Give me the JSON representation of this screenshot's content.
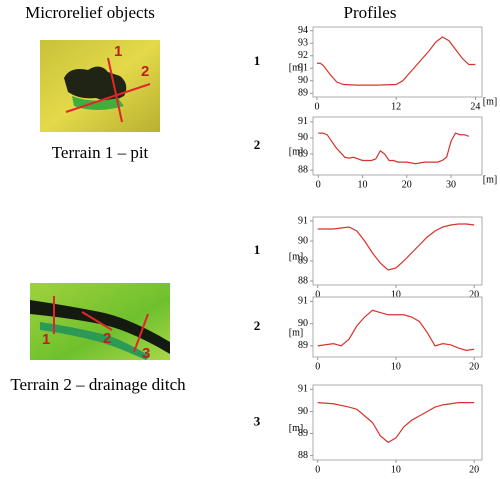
{
  "headers": {
    "left": "Microrelief objects",
    "right": "Profiles"
  },
  "terrains": [
    {
      "caption": "Terrain 1 – pit",
      "line_labels": [
        "1",
        "2"
      ]
    },
    {
      "caption": "Terrain 2 – drainage ditch",
      "line_labels": [
        "1",
        "2",
        "3"
      ]
    }
  ],
  "chart_data": [
    {
      "type": "line",
      "title": "1",
      "ylabel": "[m]",
      "xlabel": "[m]",
      "color": "#d7332c",
      "x": [
        0,
        0.5,
        1,
        2,
        3,
        4,
        6,
        9,
        12,
        13,
        14,
        15,
        16,
        17,
        18,
        19,
        20,
        21,
        22,
        23,
        24
      ],
      "series": [
        {
          "values": [
            91.4,
            91.4,
            91.2,
            90.5,
            89.9,
            89.7,
            89.65,
            89.65,
            89.7,
            90.0,
            90.6,
            91.2,
            91.8,
            92.4,
            93.1,
            93.5,
            93.2,
            92.5,
            91.8,
            91.3,
            91.3
          ]
        }
      ],
      "xlim": [
        -0.6,
        25
      ],
      "ylim": [
        88.7,
        94.3
      ],
      "xticks": [
        0,
        12,
        24
      ],
      "yticks": [
        89,
        90,
        91,
        92,
        93,
        94
      ]
    },
    {
      "type": "line",
      "title": "2",
      "ylabel": "[m]",
      "xlabel": "[m]",
      "color": "#d7332c",
      "x": [
        0,
        1,
        2,
        3,
        4,
        5,
        6,
        7,
        8,
        9,
        10,
        11,
        12,
        13,
        14,
        15,
        16,
        17,
        18,
        20,
        22,
        24,
        26,
        27,
        28,
        29,
        30,
        31,
        32,
        33,
        34
      ],
      "series": [
        {
          "values": [
            90.3,
            90.3,
            90.2,
            89.8,
            89.4,
            89.1,
            88.8,
            88.75,
            88.8,
            88.7,
            88.6,
            88.6,
            88.6,
            88.7,
            89.2,
            89.0,
            88.6,
            88.6,
            88.5,
            88.5,
            88.4,
            88.5,
            88.5,
            88.5,
            88.6,
            88.8,
            89.8,
            90.3,
            90.2,
            90.2,
            90.1
          ]
        }
      ],
      "xlim": [
        -1.2,
        37
      ],
      "ylim": [
        87.7,
        91.3
      ],
      "xticks": [
        0,
        10,
        20,
        30
      ],
      "yticks": [
        88,
        89,
        90,
        91
      ]
    },
    {
      "type": "line",
      "title": "1",
      "ylabel": "[m]",
      "color": "#d7332c",
      "x": [
        0,
        2,
        4,
        5,
        6,
        7,
        8,
        9,
        10,
        11,
        12,
        13,
        14,
        15,
        16,
        17,
        18,
        19,
        20
      ],
      "series": [
        {
          "values": [
            90.6,
            90.6,
            90.7,
            90.5,
            90.0,
            89.4,
            88.9,
            88.55,
            88.65,
            89.0,
            89.4,
            89.8,
            90.2,
            90.5,
            90.7,
            90.8,
            90.85,
            90.85,
            90.8
          ]
        }
      ],
      "xlim": [
        -0.6,
        21
      ],
      "ylim": [
        87.8,
        91.2
      ],
      "xticks": [
        0,
        10,
        20
      ],
      "yticks": [
        88,
        89,
        90,
        91
      ]
    },
    {
      "type": "line",
      "title": "2",
      "ylabel": "[m]",
      "color": "#d7332c",
      "x": [
        0,
        1,
        2,
        3,
        4,
        5,
        6,
        7,
        8,
        9,
        10,
        11,
        12,
        13,
        14,
        15,
        16,
        17,
        18,
        19,
        20
      ],
      "series": [
        {
          "values": [
            89.0,
            89.05,
            89.1,
            89.0,
            89.3,
            89.9,
            90.3,
            90.6,
            90.5,
            90.4,
            90.4,
            90.4,
            90.3,
            90.1,
            89.6,
            89.0,
            89.1,
            89.05,
            88.9,
            88.8,
            88.85
          ]
        }
      ],
      "xlim": [
        -0.6,
        21
      ],
      "ylim": [
        88.5,
        91.2
      ],
      "xticks": [
        0,
        10,
        20
      ],
      "yticks": [
        89,
        90,
        91
      ]
    },
    {
      "type": "line",
      "title": "3",
      "ylabel": "[m]",
      "color": "#d7332c",
      "x": [
        0,
        2,
        4,
        5,
        6,
        7,
        8,
        9,
        10,
        11,
        12,
        13,
        14,
        15,
        16,
        18,
        19,
        20
      ],
      "series": [
        {
          "values": [
            90.4,
            90.35,
            90.2,
            90.1,
            89.8,
            89.5,
            88.9,
            88.6,
            88.8,
            89.3,
            89.6,
            89.8,
            90.0,
            90.2,
            90.3,
            90.4,
            90.4,
            90.4
          ]
        }
      ],
      "xlim": [
        -0.6,
        21
      ],
      "ylim": [
        87.8,
        91.2
      ],
      "xticks": [
        0,
        10,
        20
      ],
      "yticks": [
        88,
        89,
        90,
        91
      ]
    }
  ]
}
